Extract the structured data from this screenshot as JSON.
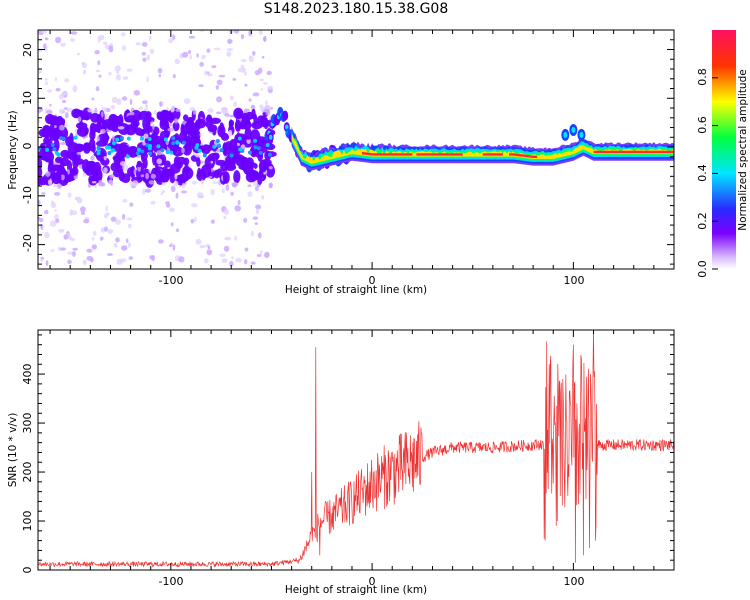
{
  "figure": {
    "title": "S148.2023.180.15.38.G08"
  },
  "chart_data": [
    {
      "type": "heatmap",
      "xlabel": "Height of straight line (km)",
      "ylabel": "Frequency (Hz)",
      "xlim": [
        -166,
        150
      ],
      "ylim": [
        -25,
        24
      ],
      "xticks": [
        -100,
        0,
        100
      ],
      "yticks": [
        -20,
        -10,
        0,
        10,
        20
      ],
      "colorbar": {
        "label": "Normalized spectral amplitude",
        "range": [
          0.0,
          1.0
        ],
        "ticks": [
          "0.0",
          "0.2",
          "0.4",
          "0.6",
          "0.8"
        ]
      },
      "ridge": {
        "x": [
          -166,
          -130,
          -100,
          -70,
          -55,
          -45,
          -40,
          -35,
          -30,
          -20,
          -10,
          0,
          10,
          30,
          50,
          70,
          80,
          90,
          100,
          105,
          110,
          150
        ],
        "y": [
          0,
          0,
          0,
          0,
          0,
          7,
          2,
          -2,
          -3,
          -2,
          -1,
          -1.5,
          -1.5,
          -1.5,
          -1.5,
          -1.5,
          -2,
          -2,
          -1,
          0,
          -1,
          -1
        ]
      }
    },
    {
      "type": "line",
      "xlabel": "Height of straight line (km)",
      "ylabel": "SNR (10 * v/v)",
      "xlim": [
        -166,
        150
      ],
      "ylim": [
        0,
        490
      ],
      "xticks": [
        -100,
        0,
        100
      ],
      "yticks": [
        0,
        100,
        200,
        300,
        400
      ],
      "series": [
        {
          "color": "#ee3333",
          "envelope_x": [
            -166,
            -50,
            -36,
            -30,
            -25,
            -20,
            -10,
            0,
            10,
            20,
            30,
            40,
            60,
            80,
            90,
            95,
            100,
            105,
            110,
            120,
            150
          ],
          "envelope_y": [
            12,
            12,
            20,
            70,
            100,
            110,
            140,
            175,
            200,
            220,
            240,
            250,
            250,
            255,
            260,
            250,
            255,
            260,
            255,
            255,
            255
          ],
          "spikes": [
            {
              "x": -28,
              "y": 455
            },
            {
              "x": -30,
              "y": 200
            },
            {
              "x": -26,
              "y": 30
            },
            {
              "x": 88,
              "y": 420
            },
            {
              "x": 92,
              "y": 100
            },
            {
              "x": 100,
              "y": 460
            },
            {
              "x": 101,
              "y": 15
            },
            {
              "x": 104,
              "y": 430
            },
            {
              "x": 105,
              "y": 30
            },
            {
              "x": 108,
              "y": 45
            },
            {
              "x": 110,
              "y": 490
            },
            {
              "x": 111,
              "y": 60
            }
          ]
        }
      ]
    }
  ]
}
